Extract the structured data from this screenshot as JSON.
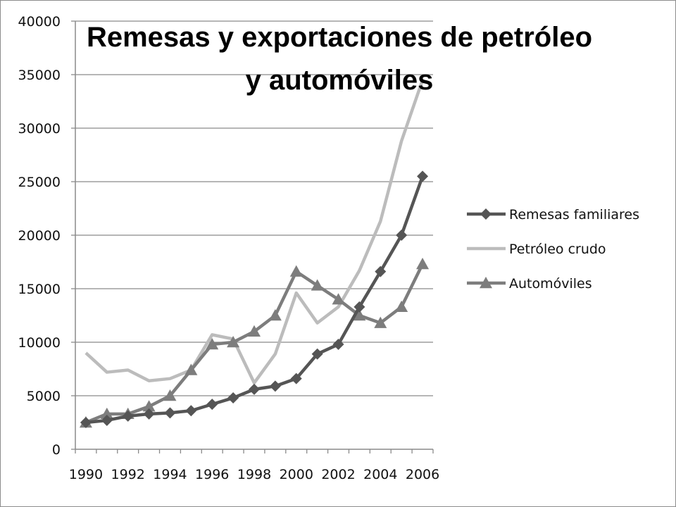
{
  "chart_data": {
    "type": "line",
    "title_line1": "Remesas y exportaciones de petróleo",
    "title_line2": "y automóviles",
    "x": [
      1990,
      1991,
      1992,
      1993,
      1994,
      1995,
      1996,
      1997,
      1998,
      1999,
      2000,
      2001,
      2002,
      2003,
      2004,
      2005,
      2006
    ],
    "x_tick_labels": [
      "1990",
      "1992",
      "1994",
      "1996",
      "1998",
      "2000",
      "2002",
      "2004",
      "2006"
    ],
    "y_tick_labels": [
      "0",
      "5000",
      "10000",
      "15000",
      "20000",
      "25000",
      "30000",
      "35000",
      "40000"
    ],
    "ylim": [
      0,
      40000
    ],
    "grid": true,
    "legend_position": "right",
    "series": [
      {
        "name": "Remesas familiares",
        "color": "#555555",
        "marker": "diamond",
        "values": [
          2500,
          2700,
          3100,
          3300,
          3400,
          3600,
          4200,
          4800,
          5600,
          5900,
          6600,
          8900,
          9800,
          13300,
          16600,
          20000,
          25500
        ]
      },
      {
        "name": "Petróleo crudo",
        "color": "#bcbcbc",
        "marker": "none",
        "values": [
          9000,
          7200,
          7400,
          6400,
          6600,
          7400,
          10700,
          10300,
          6200,
          8900,
          14600,
          11800,
          13300,
          16700,
          21300,
          28800,
          34500
        ]
      },
      {
        "name": "Automóviles",
        "color": "#7d7d7d",
        "marker": "triangle",
        "values": [
          2500,
          3300,
          3300,
          4000,
          5000,
          7400,
          9800,
          10000,
          11000,
          12500,
          16600,
          15300,
          14000,
          12500,
          11800,
          13300,
          17300
        ]
      }
    ]
  }
}
